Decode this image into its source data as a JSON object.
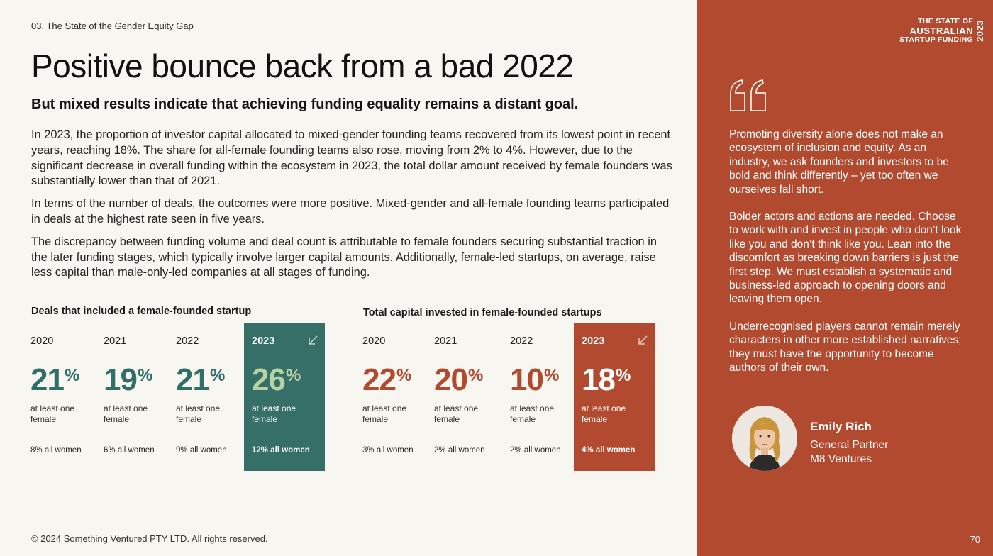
{
  "section_label": "03. The State of the Gender Equity Gap",
  "title": "Positive bounce back from a bad 2022",
  "subtitle": "But mixed results indicate that achieving funding equality remains a distant goal.",
  "paragraphs": [
    "In 2023, the proportion of investor capital allocated to mixed-gender founding teams recovered from its lowest point in recent years, reaching 18%. The share for all-female founding teams also rose, moving from 2% to 4%. However, due to the significant decrease in overall funding within the ecosystem in 2023, the total dollar amount received by female founders was substantially lower than that of 2021.",
    "In terms of the number of deals, the outcomes were more positive. Mixed-gender and all-female founding teams participated in deals at the highest rate seen in five years.",
    "The discrepancy between funding volume and deal count is attributable to female founders securing substantial traction in the later funding stages, which typically involve larger capital amounts. Additionally, female-led startups, on average, raise less capital than male-only-led companies at all stages of funding."
  ],
  "deals": {
    "heading": "Deals that included a female-founded startup",
    "cards": [
      {
        "year": "2020",
        "value": "21",
        "unit": "%",
        "desc": "at least one female",
        "all_women": "8% all women"
      },
      {
        "year": "2021",
        "value": "19",
        "unit": "%",
        "desc": "at least one female",
        "all_women": "6% all women"
      },
      {
        "year": "2022",
        "value": "21",
        "unit": "%",
        "desc": "at least one female",
        "all_women": "9% all women"
      },
      {
        "year": "2023",
        "value": "26",
        "unit": "%",
        "desc": "at least one female",
        "all_women": "12% all women"
      }
    ]
  },
  "capital": {
    "heading": "Total capital invested in female-founded startups",
    "cards": [
      {
        "year": "2020",
        "value": "22",
        "unit": "%",
        "desc": "at least one female",
        "all_women": "3% all women"
      },
      {
        "year": "2021",
        "value": "20",
        "unit": "%",
        "desc": "at least one female",
        "all_women": "2% all women"
      },
      {
        "year": "2022",
        "value": "10",
        "unit": "%",
        "desc": "at least one female",
        "all_women": "2% all women"
      },
      {
        "year": "2023",
        "value": "18",
        "unit": "%",
        "desc": "at least one female",
        "all_women": "4% all women"
      }
    ]
  },
  "brand": {
    "line1": "THE STATE OF",
    "line2": "AUSTRALIAN",
    "line3": "STARTUP FUNDING",
    "year": "2023"
  },
  "quote": [
    "Promoting diversity alone does not make an ecosystem of inclusion and equity. As an industry, we ask founders and investors to be bold and think differently – yet too often we ourselves fall short.",
    "Bolder actors and actions are needed. Choose to work with and invest in people who don’t look like you and don’t think like you. Lean into the discomfort as breaking down barriers is just the first step. We must establish a systematic and business-led approach to opening doors and leaving them open.",
    "Underrecognised players cannot remain merely characters in other more established narratives; they must have the opportunity to become authors of their own."
  ],
  "person": {
    "name": "Emily Rich",
    "role_line1": "General Partner",
    "role_line2": "M8 Ventures"
  },
  "footer": "© 2024 Something Ventured PTY LTD. All rights reserved.",
  "page_number": "70",
  "colors": {
    "teal": "#2f6f68",
    "teal_highlight_value": "#b7d2a3",
    "rust": "#b24a2f",
    "background": "#f8f6f0"
  }
}
